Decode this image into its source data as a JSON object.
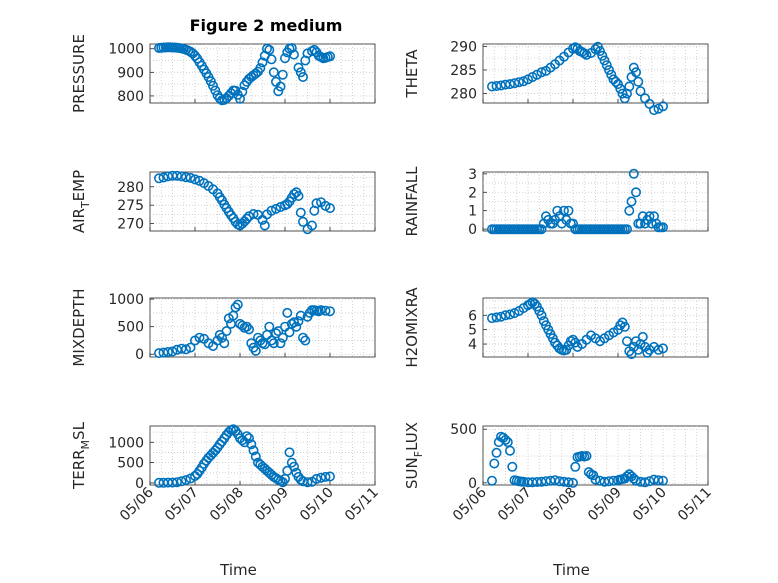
{
  "title": "Figure 2 medium",
  "xlabel": "Time",
  "date_ticks": [
    "05/06",
    "05/07",
    "05/08",
    "05/09",
    "05/10",
    "05/11"
  ],
  "marker_color": "#0072bd",
  "chart_data": [
    {
      "type": "scatter",
      "key": "pressure",
      "ylabel": "PRESSURE",
      "ylim": [
        770,
        1020
      ],
      "yticks": [
        800,
        900,
        1000
      ],
      "x": [
        0.2,
        0.25,
        0.3,
        0.35,
        0.4,
        0.45,
        0.5,
        0.55,
        0.6,
        0.65,
        0.7,
        0.75,
        0.8,
        0.85,
        0.9,
        0.95,
        1.0,
        1.05,
        1.1,
        1.15,
        1.2,
        1.25,
        1.3,
        1.35,
        1.4,
        1.45,
        1.5,
        1.55,
        1.6,
        1.65,
        1.7,
        1.75,
        1.8,
        1.85,
        1.9,
        1.95,
        2.0,
        2.05,
        2.1,
        2.15,
        2.2,
        2.25,
        2.3,
        2.35,
        2.4,
        2.45,
        2.5,
        2.55,
        2.6,
        2.65,
        2.7,
        2.75,
        2.8,
        2.85,
        2.9,
        2.95,
        3.0,
        3.05,
        3.1,
        3.15,
        3.2,
        3.3,
        3.35,
        3.4,
        3.45,
        3.5,
        3.6,
        3.65,
        3.7,
        3.75,
        3.8,
        3.85,
        3.9,
        3.95,
        4.0
      ],
      "values": [
        1003,
        1004,
        1005,
        1005,
        1006,
        1006,
        1005,
        1005,
        1004,
        1003,
        1001,
        999,
        996,
        992,
        987,
        980,
        970,
        958,
        943,
        928,
        912,
        896,
        880,
        862,
        843,
        823,
        803,
        790,
        782,
        783,
        790,
        800,
        812,
        823,
        822,
        805,
        788,
        818,
        845,
        860,
        872,
        880,
        888,
        895,
        903,
        918,
        942,
        970,
        1000,
        995,
        955,
        900,
        860,
        820,
        840,
        890,
        960,
        985,
        1000,
        1003,
        975,
        920,
        900,
        880,
        950,
        980,
        990,
        995,
        985,
        970,
        965,
        960,
        962,
        965,
        968
      ]
    },
    {
      "type": "scatter",
      "key": "theta",
      "ylabel": "THETA",
      "ylim": [
        278,
        290.5
      ],
      "yticks": [
        280,
        285,
        290
      ],
      "x": [
        0.2,
        0.3,
        0.4,
        0.5,
        0.6,
        0.7,
        0.8,
        0.9,
        1.0,
        1.1,
        1.2,
        1.3,
        1.4,
        1.5,
        1.6,
        1.7,
        1.8,
        1.9,
        2.0,
        2.05,
        2.1,
        2.15,
        2.2,
        2.25,
        2.3,
        2.4,
        2.5,
        2.55,
        2.6,
        2.65,
        2.7,
        2.75,
        2.8,
        2.85,
        2.9,
        2.95,
        3.0,
        3.05,
        3.1,
        3.15,
        3.2,
        3.25,
        3.3,
        3.35,
        3.4,
        3.45,
        3.5,
        3.6,
        3.7,
        3.8,
        3.9,
        4.0
      ],
      "values": [
        281.5,
        281.6,
        281.7,
        281.9,
        282.0,
        282.2,
        282.4,
        282.6,
        283.0,
        283.5,
        284.0,
        284.5,
        284.8,
        285.5,
        286.2,
        287.0,
        287.8,
        288.7,
        289.5,
        289.8,
        289.5,
        289.0,
        288.8,
        288.5,
        288.2,
        288.6,
        289.4,
        289.9,
        289.0,
        288.0,
        287.0,
        286.0,
        285.0,
        284.0,
        283.0,
        282.5,
        282.0,
        281.0,
        280.0,
        279.0,
        280.0,
        281.5,
        283.5,
        285.5,
        284.5,
        282.5,
        280.5,
        279.0,
        277.8,
        276.5,
        276.8,
        277.3
      ]
    },
    {
      "type": "scatter",
      "key": "air_temp",
      "ylabel": "AIR_TEMP",
      "ylim": [
        268,
        284
      ],
      "yticks": [
        270,
        275,
        280
      ],
      "x": [
        0.2,
        0.3,
        0.4,
        0.5,
        0.6,
        0.7,
        0.8,
        0.9,
        1.0,
        1.1,
        1.2,
        1.3,
        1.4,
        1.5,
        1.55,
        1.6,
        1.65,
        1.7,
        1.75,
        1.8,
        1.85,
        1.9,
        1.95,
        2.0,
        2.05,
        2.1,
        2.15,
        2.2,
        2.3,
        2.4,
        2.5,
        2.55,
        2.6,
        2.7,
        2.8,
        2.9,
        3.0,
        3.05,
        3.1,
        3.15,
        3.2,
        3.25,
        3.3,
        3.35,
        3.4,
        3.5,
        3.6,
        3.65,
        3.7,
        3.8,
        3.9,
        4.0
      ],
      "values": [
        282.3,
        282.5,
        282.8,
        283.0,
        283.0,
        282.8,
        282.6,
        282.4,
        282.0,
        281.6,
        281.0,
        280.2,
        279.3,
        278.2,
        277.2,
        276.3,
        275.2,
        274.2,
        273.2,
        272.3,
        271.5,
        270.5,
        269.8,
        269.5,
        270.0,
        270.6,
        271.3,
        272.0,
        272.6,
        272.4,
        271.0,
        269.5,
        272.5,
        273.5,
        274.0,
        274.5,
        275.0,
        275.3,
        276.0,
        277.0,
        278.0,
        278.5,
        277.5,
        273.0,
        270.5,
        268.5,
        269.5,
        273.5,
        275.5,
        275.8,
        274.8,
        274.2
      ]
    },
    {
      "type": "scatter",
      "key": "rainfall",
      "ylabel": "RAINFALL",
      "ylim": [
        -0.1,
        3.1
      ],
      "yticks": [
        0,
        1,
        2,
        3
      ],
      "x": [
        0.2,
        0.25,
        0.3,
        0.35,
        0.4,
        0.45,
        0.5,
        0.55,
        0.6,
        0.65,
        0.7,
        0.75,
        0.8,
        0.85,
        0.9,
        0.95,
        1.0,
        1.05,
        1.1,
        1.15,
        1.2,
        1.25,
        1.3,
        1.35,
        1.4,
        1.45,
        1.5,
        1.55,
        1.6,
        1.65,
        1.7,
        1.75,
        1.8,
        1.85,
        1.9,
        1.95,
        2.0,
        2.05,
        2.1,
        2.15,
        2.2,
        2.25,
        2.3,
        2.35,
        2.4,
        2.45,
        2.5,
        2.55,
        2.6,
        2.65,
        2.7,
        2.75,
        2.8,
        2.85,
        2.9,
        2.95,
        3.0,
        3.05,
        3.1,
        3.15,
        3.2,
        3.25,
        3.3,
        3.35,
        3.4,
        3.45,
        3.5,
        3.55,
        3.6,
        3.65,
        3.7,
        3.75,
        3.8,
        3.85,
        3.9,
        3.95,
        4.0
      ],
      "values": [
        0,
        0,
        0,
        0,
        0,
        0,
        0,
        0,
        0,
        0,
        0,
        0,
        0,
        0,
        0,
        0,
        0,
        0,
        0,
        0,
        0,
        0,
        0,
        0.3,
        0.7,
        0.5,
        0.3,
        0.3,
        0.5,
        1.0,
        0.7,
        0.3,
        1.0,
        0.5,
        1.0,
        0.3,
        0.3,
        0,
        0,
        0,
        0,
        0,
        0,
        0,
        0,
        0,
        0,
        0,
        0,
        0,
        0,
        0,
        0,
        0,
        0,
        0,
        0,
        0,
        0,
        0,
        0,
        1.0,
        1.5,
        3.0,
        2.0,
        0.3,
        0.3,
        0.7,
        0.3,
        0.5,
        0.7,
        0.3,
        0.7,
        0.3,
        0.1,
        0.1,
        0.1
      ]
    },
    {
      "type": "scatter",
      "key": "mixdepth",
      "ylabel": "MIXDEPTH",
      "ylim": [
        -50,
        1020
      ],
      "yticks": [
        0,
        500,
        1000
      ],
      "x": [
        0.2,
        0.3,
        0.4,
        0.5,
        0.6,
        0.7,
        0.8,
        0.9,
        1.0,
        1.1,
        1.2,
        1.3,
        1.4,
        1.5,
        1.55,
        1.6,
        1.65,
        1.7,
        1.75,
        1.8,
        1.85,
        1.9,
        1.95,
        2.0,
        2.05,
        2.1,
        2.15,
        2.2,
        2.25,
        2.3,
        2.35,
        2.4,
        2.45,
        2.5,
        2.55,
        2.6,
        2.65,
        2.7,
        2.75,
        2.8,
        2.85,
        2.9,
        2.95,
        3.0,
        3.05,
        3.1,
        3.15,
        3.2,
        3.25,
        3.3,
        3.35,
        3.4,
        3.45,
        3.5,
        3.55,
        3.6,
        3.65,
        3.7,
        3.75,
        3.8,
        3.9,
        4.0
      ],
      "values": [
        20,
        30,
        40,
        50,
        80,
        100,
        90,
        120,
        250,
        300,
        280,
        200,
        150,
        250,
        350,
        300,
        200,
        420,
        650,
        550,
        700,
        850,
        900,
        550,
        520,
        480,
        500,
        450,
        200,
        120,
        60,
        300,
        250,
        200,
        180,
        350,
        500,
        250,
        200,
        380,
        420,
        200,
        300,
        500,
        750,
        400,
        550,
        580,
        500,
        600,
        700,
        300,
        250,
        680,
        750,
        800,
        800,
        790,
        780,
        800,
        790,
        780
      ]
    },
    {
      "type": "scatter",
      "key": "h2omixra",
      "ylabel": "H2OMIXRA",
      "ylim": [
        3.1,
        7.2
      ],
      "yticks": [
        4,
        5,
        6
      ],
      "x": [
        0.2,
        0.3,
        0.4,
        0.5,
        0.6,
        0.7,
        0.8,
        0.9,
        1.0,
        1.05,
        1.1,
        1.15,
        1.2,
        1.25,
        1.3,
        1.35,
        1.4,
        1.45,
        1.5,
        1.55,
        1.6,
        1.65,
        1.7,
        1.75,
        1.8,
        1.85,
        1.9,
        1.95,
        2.0,
        2.05,
        2.1,
        2.2,
        2.3,
        2.4,
        2.5,
        2.6,
        2.7,
        2.8,
        2.9,
        3.0,
        3.05,
        3.1,
        3.15,
        3.2,
        3.25,
        3.3,
        3.35,
        3.4,
        3.45,
        3.5,
        3.55,
        3.6,
        3.65,
        3.7,
        3.8,
        3.9,
        4.0
      ],
      "values": [
        5.8,
        5.85,
        5.9,
        6.0,
        6.05,
        6.15,
        6.3,
        6.5,
        6.7,
        6.8,
        6.9,
        6.8,
        6.6,
        6.3,
        6.0,
        5.6,
        5.3,
        5.0,
        4.7,
        4.4,
        4.1,
        3.9,
        3.7,
        3.6,
        3.55,
        3.6,
        3.9,
        4.2,
        4.3,
        4.1,
        3.8,
        4.0,
        4.3,
        4.6,
        4.4,
        4.2,
        4.4,
        4.6,
        4.8,
        5.0,
        5.3,
        5.5,
        5.2,
        4.2,
        3.5,
        3.3,
        3.8,
        4.2,
        3.6,
        4.0,
        4.5,
        3.8,
        3.4,
        3.6,
        3.8,
        3.6,
        3.7
      ]
    },
    {
      "type": "scatter",
      "key": "terr_msl",
      "ylabel": "TERR_MSL",
      "ylim": [
        -50,
        1400
      ],
      "yticks": [
        0,
        500,
        1000
      ],
      "x": [
        0.2,
        0.3,
        0.4,
        0.5,
        0.6,
        0.7,
        0.8,
        0.9,
        1.0,
        1.05,
        1.1,
        1.15,
        1.2,
        1.25,
        1.3,
        1.35,
        1.4,
        1.45,
        1.5,
        1.55,
        1.6,
        1.65,
        1.7,
        1.75,
        1.8,
        1.85,
        1.9,
        1.95,
        2.0,
        2.05,
        2.1,
        2.15,
        2.2,
        2.25,
        2.3,
        2.35,
        2.4,
        2.45,
        2.5,
        2.55,
        2.6,
        2.65,
        2.7,
        2.75,
        2.8,
        2.85,
        2.9,
        2.95,
        3.0,
        3.05,
        3.1,
        3.15,
        3.2,
        3.25,
        3.3,
        3.35,
        3.4,
        3.5,
        3.6,
        3.7,
        3.8,
        3.9,
        4.0
      ],
      "values": [
        5,
        5,
        8,
        10,
        20,
        40,
        70,
        110,
        170,
        220,
        300,
        380,
        470,
        550,
        620,
        680,
        740,
        800,
        870,
        950,
        1020,
        1100,
        1180,
        1250,
        1300,
        1320,
        1280,
        1200,
        1100,
        1050,
        1000,
        1150,
        1100,
        950,
        800,
        650,
        500,
        450,
        400,
        350,
        300,
        250,
        200,
        150,
        120,
        80,
        50,
        20,
        100,
        300,
        750,
        500,
        400,
        250,
        150,
        80,
        40,
        20,
        30,
        100,
        130,
        150,
        160
      ]
    },
    {
      "type": "scatter",
      "key": "sun_flux",
      "ylabel": "SUN_FLUX",
      "ylim": [
        -20,
        530
      ],
      "yticks": [
        0,
        500
      ],
      "x": [
        0.2,
        0.25,
        0.3,
        0.35,
        0.4,
        0.45,
        0.5,
        0.55,
        0.6,
        0.65,
        0.7,
        0.75,
        0.8,
        0.85,
        0.9,
        1.0,
        1.1,
        1.2,
        1.3,
        1.4,
        1.5,
        1.6,
        1.7,
        1.8,
        1.9,
        2.0,
        2.05,
        2.1,
        2.15,
        2.2,
        2.25,
        2.3,
        2.35,
        2.4,
        2.45,
        2.5,
        2.6,
        2.7,
        2.8,
        2.9,
        3.0,
        3.05,
        3.1,
        3.15,
        3.2,
        3.25,
        3.3,
        3.35,
        3.4,
        3.5,
        3.6,
        3.7,
        3.8,
        3.9,
        4.0
      ],
      "values": [
        20,
        180,
        280,
        380,
        430,
        420,
        400,
        380,
        300,
        150,
        25,
        20,
        15,
        12,
        10,
        5,
        5,
        8,
        10,
        15,
        20,
        25,
        15,
        10,
        5,
        0,
        150,
        240,
        245,
        250,
        245,
        250,
        100,
        80,
        70,
        30,
        20,
        10,
        15,
        20,
        25,
        30,
        35,
        40,
        60,
        80,
        60,
        40,
        20,
        10,
        5,
        15,
        30,
        25,
        20
      ]
    }
  ]
}
